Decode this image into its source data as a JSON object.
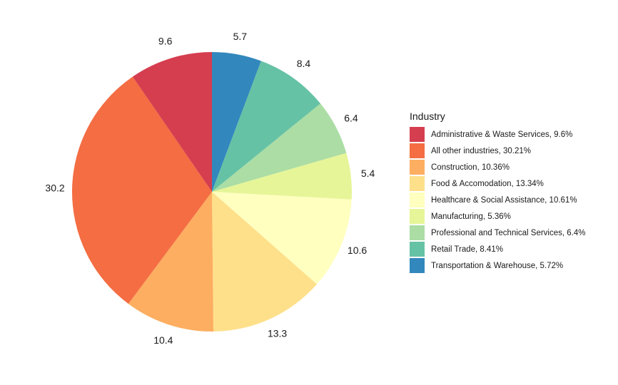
{
  "chart_data": {
    "type": "pie",
    "title": "",
    "legend": {
      "title": "Industry",
      "position": "right"
    },
    "slices": [
      {
        "category": "Transportation & Warehouse",
        "value": 5.72,
        "label": "5.7",
        "legend_label": "Transportation & Warehouse, 5.72%",
        "color": "#3288BD"
      },
      {
        "category": "Retail Trade",
        "value": 8.41,
        "label": "8.4",
        "legend_label": "Retail Trade, 8.41%",
        "color": "#66C2A5"
      },
      {
        "category": "Professional and Technical Services",
        "value": 6.4,
        "label": "6.4",
        "legend_label": "Professional and Technical Services, 6.4%",
        "color": "#ABDDA4"
      },
      {
        "category": "Manufacturing",
        "value": 5.36,
        "label": "5.4",
        "legend_label": "Manufacturing, 5.36%",
        "color": "#E6F598"
      },
      {
        "category": "Healthcare & Social Assistance",
        "value": 10.61,
        "label": "10.6",
        "legend_label": "Healthcare & Social Assistance, 10.61%",
        "color": "#FFFFBF"
      },
      {
        "category": "Food & Accomodation",
        "value": 13.34,
        "label": "13.3",
        "legend_label": "Food & Accomodation, 13.34%",
        "color": "#FEE08B"
      },
      {
        "category": "Construction",
        "value": 10.36,
        "label": "10.4",
        "legend_label": "Construction, 10.36%",
        "color": "#FDAE61"
      },
      {
        "category": "All other industries",
        "value": 30.21,
        "label": "30.2",
        "legend_label": "All other industries, 30.21%",
        "color": "#F46D43"
      },
      {
        "category": "Administrative & Waste Services",
        "value": 9.6,
        "label": "9.6",
        "legend_label": "Administrative & Waste Services, 9.6%",
        "color": "#D53E4F"
      }
    ],
    "legend_order": [
      "Administrative & Waste Services",
      "All other industries",
      "Construction",
      "Food & Accomodation",
      "Healthcare & Social Assistance",
      "Manufacturing",
      "Professional and Technical Services",
      "Retail Trade",
      "Transportation & Warehouse"
    ]
  }
}
